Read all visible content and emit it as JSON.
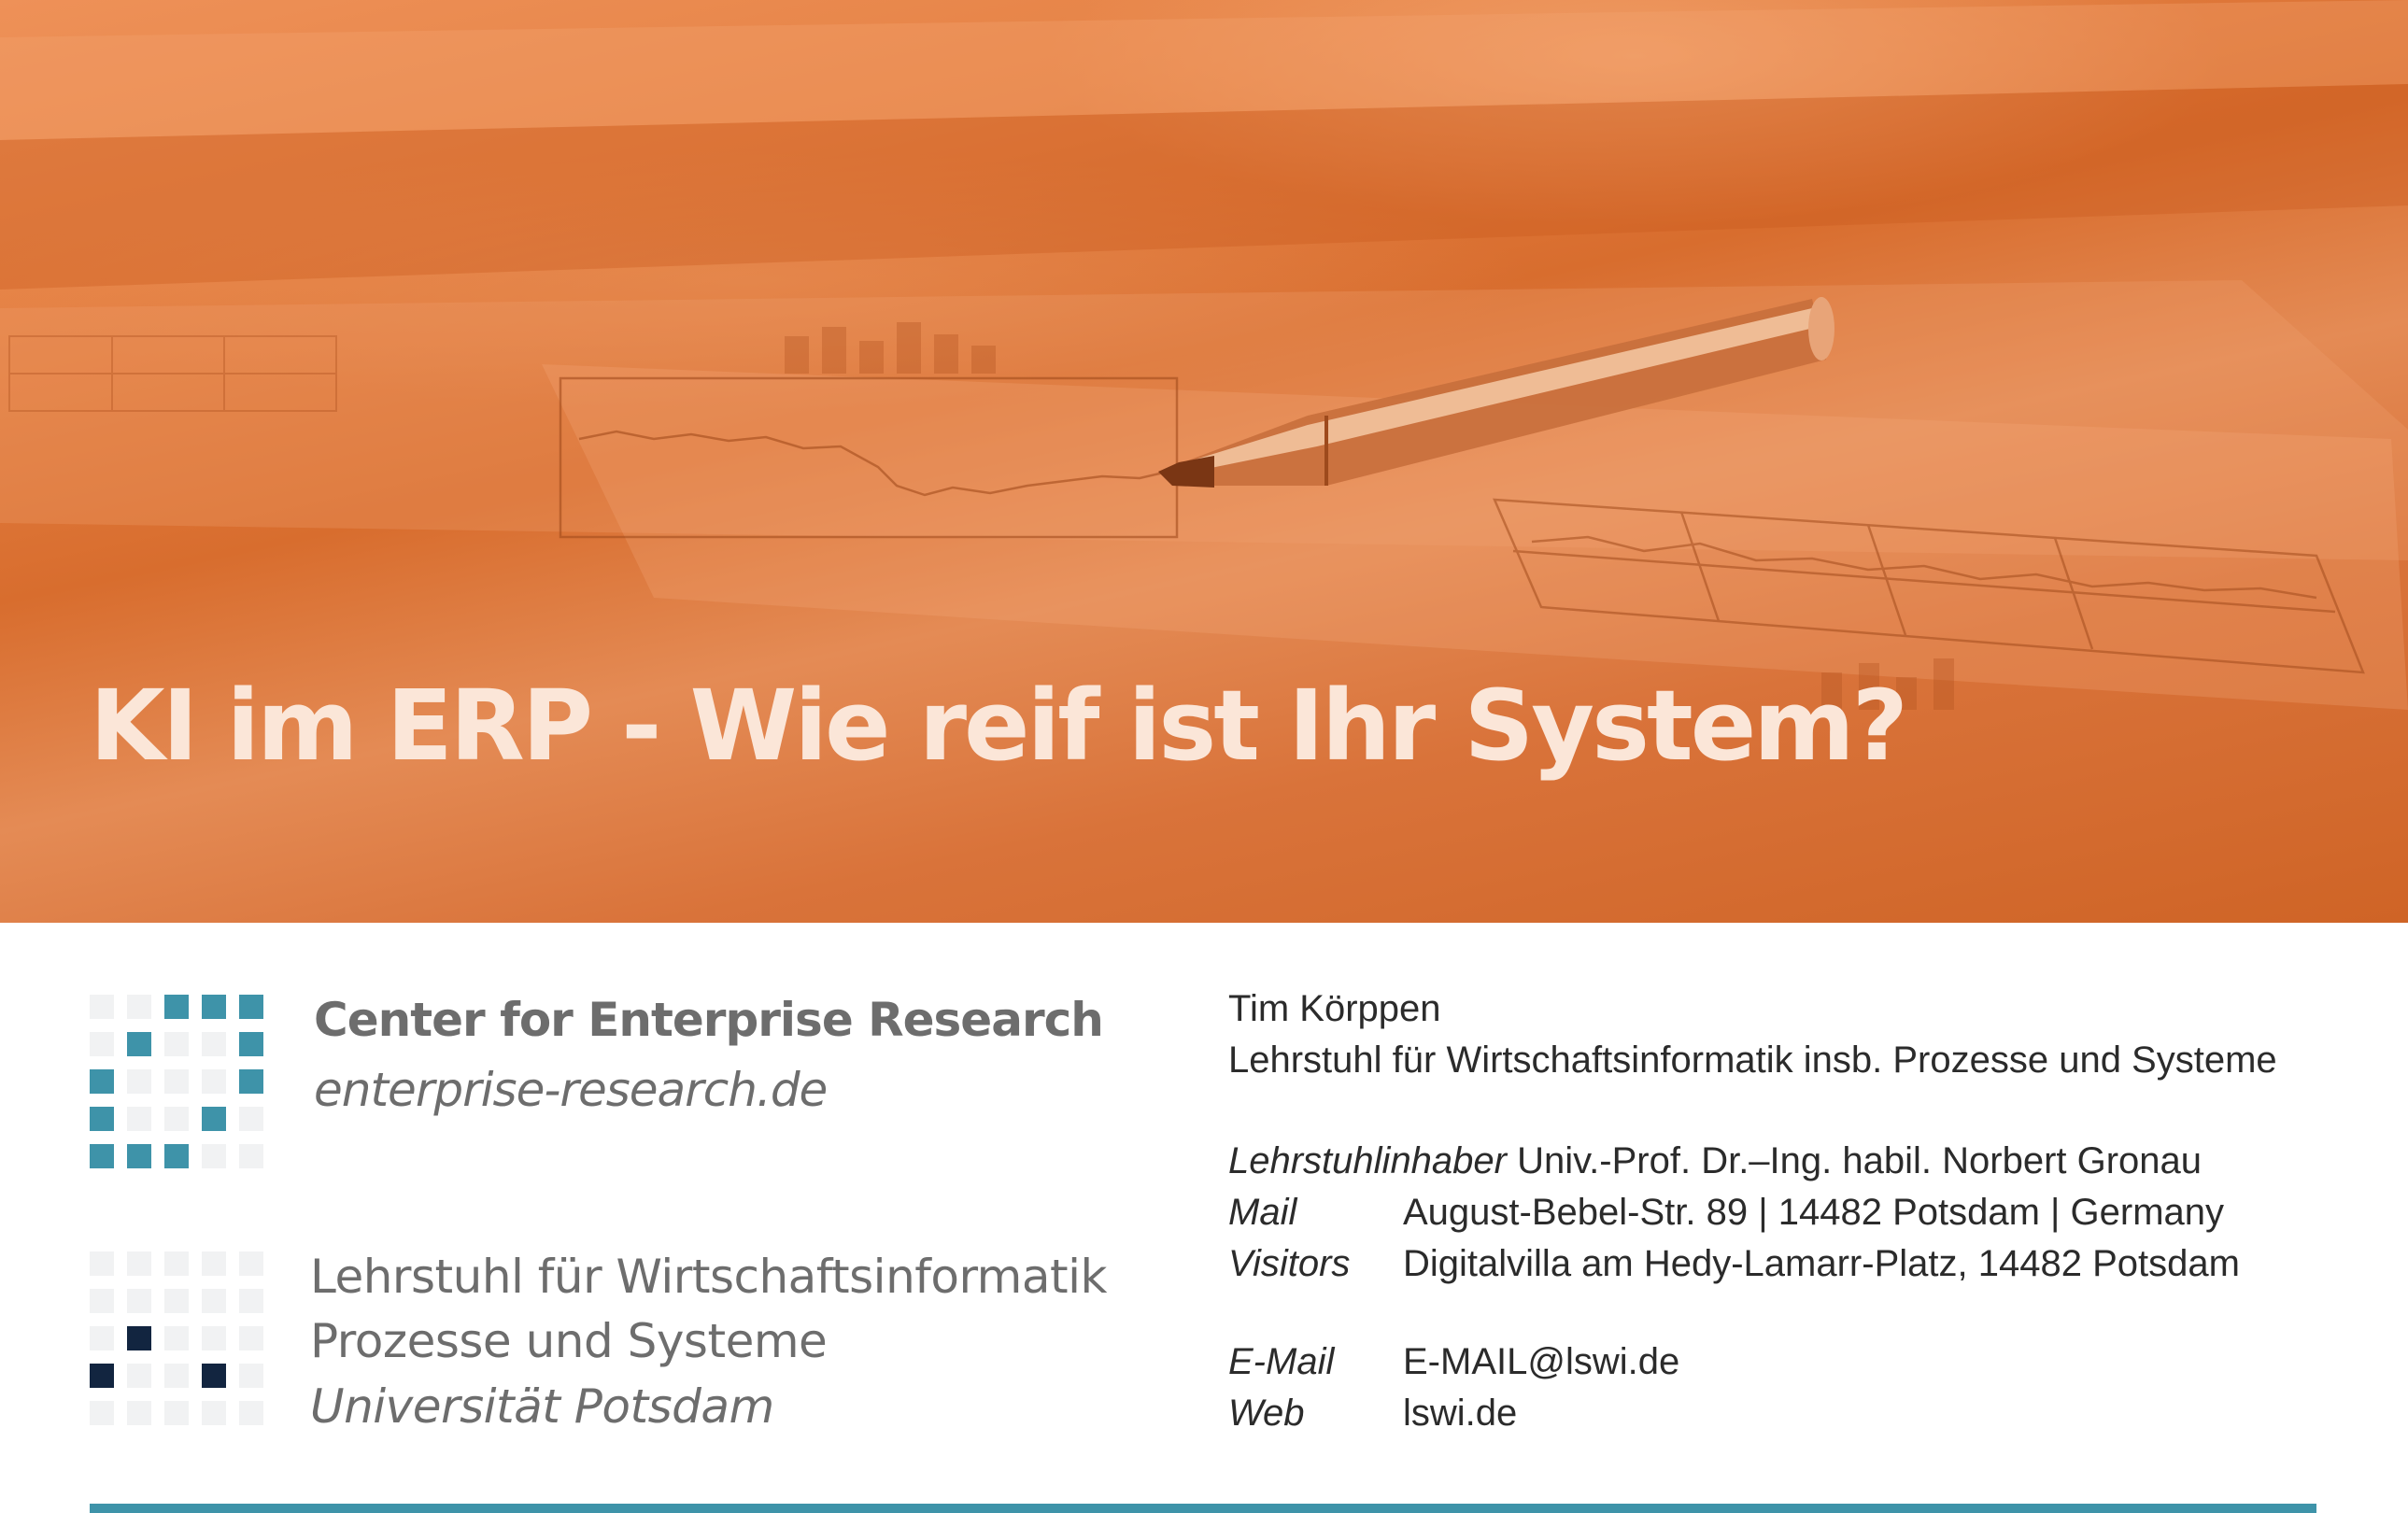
{
  "hero": {
    "title": "KI im ERP - Wie reif ist Ihr System?",
    "accent_color": "#e07a3d",
    "title_color": "#fbe6d8"
  },
  "logos": {
    "cer": {
      "name": "Center for Enterprise Research",
      "url": "enterprise-research.de",
      "color": "#3e93a9"
    },
    "lswi": {
      "line1": "Lehrstuhl für Wirtschaftsinformatik",
      "line2": "Prozesse und Systeme",
      "line3": "Universität Potsdam",
      "color": "#122540"
    }
  },
  "contact": {
    "name": "Tim Körppen",
    "department": "Lehrstuhl für Wirtschaftsinformatik insb. Prozesse und Systeme",
    "chair_label": "Lehrstuhlinhaber",
    "chair_value": "Univ.-Prof. Dr.–Ing. habil. Norbert Gronau",
    "mail_label": "Mail",
    "mail_value": "August-Bebel-Str. 89 | 14482 Potsdam | Germany",
    "visitors_label": "Visitors",
    "visitors_value": "Digitalvilla am Hedy-Lamarr-Platz, 14482 Potsdam",
    "email_label": "E-Mail",
    "email_value": "E-MAIL@lswi.de",
    "web_label": "Web",
    "web_value": "lswi.de"
  },
  "footer": {
    "bar_color": "#3e93a9"
  }
}
